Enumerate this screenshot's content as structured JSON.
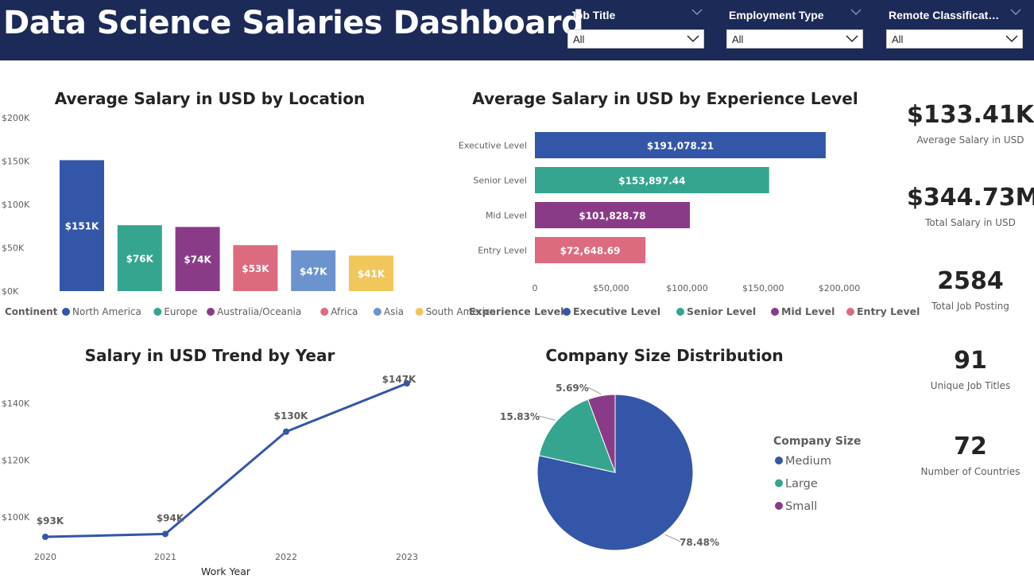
{
  "header": {
    "title": "Data Science Salaries Dashboard",
    "filters": [
      {
        "label": "Job Title",
        "value": "All"
      },
      {
        "label": "Employment Type",
        "value": "All"
      },
      {
        "label": "Remote Classificati...",
        "value": "All"
      }
    ]
  },
  "colors": {
    "header_bg": "#1b2a57",
    "blue": "#3456a8",
    "teal": "#35a58f",
    "purple": "#8a3b87",
    "pink": "#dd6b7f",
    "lightblue": "#6d93ce",
    "yellow": "#f1c75b"
  },
  "kpis": [
    {
      "value": "$133.41K",
      "label": "Average Salary in USD"
    },
    {
      "value": "$344.73M",
      "label": "Total Salary in USD"
    },
    {
      "value": "2584",
      "label": "Total Job Posting"
    },
    {
      "value": "91",
      "label": "Unique Job Titles"
    },
    {
      "value": "72",
      "label": "Number of Countries"
    }
  ],
  "chart_data": [
    {
      "type": "bar",
      "title": "Average Salary in USD by Location",
      "categories": [
        "North America",
        "Europe",
        "Australia/Oceania",
        "Africa",
        "Asia",
        "South America"
      ],
      "values": [
        151,
        76,
        74,
        53,
        47,
        41
      ],
      "data_labels": [
        "$151K",
        "$76K",
        "$74K",
        "$53K",
        "$47K",
        "$41K"
      ],
      "colors": [
        "#3456a8",
        "#35a58f",
        "#8a3b87",
        "#dd6b7f",
        "#6d93ce",
        "#f1c75b"
      ],
      "yticks": [
        "$0K",
        "$50K",
        "$100K",
        "$150K",
        "$200K"
      ],
      "ylim": [
        0,
        200
      ],
      "legend_title": "Continent",
      "legend_position": "bottom"
    },
    {
      "type": "bar",
      "orientation": "horizontal",
      "title": "Average Salary in USD by Experience Level",
      "categories": [
        "Executive Level",
        "Senior Level",
        "Mid Level",
        "Entry Level"
      ],
      "values": [
        191078.21,
        153897.44,
        101828.78,
        72648.69
      ],
      "data_labels": [
        "$191,078.21",
        "$153,897.44",
        "$101,828.78",
        "$72,648.69"
      ],
      "colors": [
        "#3456a8",
        "#35a58f",
        "#8a3b87",
        "#dd6b7f"
      ],
      "xticks": [
        "0",
        "$50,000",
        "$100,000",
        "$150,000",
        "$200,000"
      ],
      "xlim": [
        0,
        200000
      ],
      "legend_title": "Experience Level",
      "legend_position": "bottom"
    },
    {
      "type": "line",
      "title": "Salary in USD Trend by Year",
      "x": [
        "2020",
        "2021",
        "2022",
        "2023"
      ],
      "values": [
        93,
        94,
        130,
        147
      ],
      "data_labels": [
        "$93K",
        "$94K",
        "$130K",
        "$147K"
      ],
      "yticks": [
        "$100K",
        "$120K",
        "$140K"
      ],
      "ylim": [
        93,
        147
      ],
      "xlabel": "Work Year",
      "color": "#3456a8"
    },
    {
      "type": "pie",
      "title": "Company Size Distribution",
      "labels": [
        "Medium",
        "Large",
        "Small"
      ],
      "values": [
        78.48,
        15.83,
        5.69
      ],
      "data_labels": [
        "78.48%",
        "15.83%",
        "5.69%"
      ],
      "colors": [
        "#3456a8",
        "#35a58f",
        "#8a3b87"
      ],
      "legend_title": "Company Size",
      "legend_position": "right"
    }
  ]
}
